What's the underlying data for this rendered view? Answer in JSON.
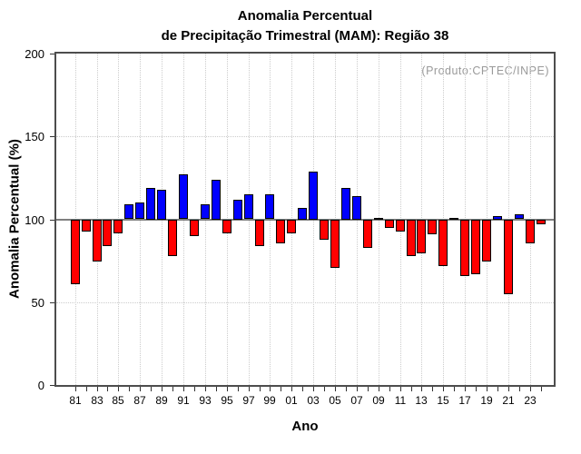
{
  "chart_data": {
    "type": "bar",
    "title": "Anomalia Percentual",
    "subtitle": "de Precipitação Trimestral (MAM): Região 38",
    "annotation": "(Produto:CPTEC/INPE)",
    "xlabel": "Ano",
    "ylabel": "Anomalia Percentual (%)",
    "ylim": [
      0,
      200
    ],
    "yticks": [
      0,
      50,
      100,
      150,
      200
    ],
    "ytick_labels": [
      "0",
      "50",
      "100",
      "150",
      "200"
    ],
    "baseline": 100,
    "grid": "dotted, vertical at labeled years, horizontal at 50 and 150",
    "legend_position": "none",
    "x_tick_labels": [
      "81",
      "83",
      "85",
      "87",
      "89",
      "91",
      "93",
      "95",
      "97",
      "99",
      "01",
      "03",
      "05",
      "07",
      "09",
      "11",
      "13",
      "15",
      "17",
      "19",
      "21",
      "23"
    ],
    "years": [
      1981,
      1982,
      1983,
      1984,
      1985,
      1986,
      1987,
      1988,
      1989,
      1990,
      1991,
      1992,
      1993,
      1994,
      1995,
      1996,
      1997,
      1998,
      1999,
      2000,
      2001,
      2002,
      2003,
      2004,
      2005,
      2006,
      2007,
      2008,
      2009,
      2010,
      2011,
      2012,
      2013,
      2014,
      2015,
      2016,
      2017,
      2018,
      2019,
      2020,
      2021,
      2022,
      2023,
      2024
    ],
    "values": [
      61,
      93,
      75,
      84,
      92,
      109,
      110,
      119,
      118,
      78,
      127,
      90,
      109,
      124,
      92,
      112,
      115,
      84,
      115,
      86,
      92,
      107,
      129,
      88,
      71,
      119,
      114,
      83,
      101,
      95,
      93,
      78,
      80,
      91,
      72,
      101,
      66,
      67,
      75,
      102,
      55,
      103,
      86,
      97
    ],
    "colors": {
      "above_baseline": "#0000ff",
      "below_baseline": "#ff0000",
      "bar_border": "#000000",
      "baseline_line": "#7f7f7f",
      "grid_line": "#cccccc",
      "annotation_text": "#9a9a9a",
      "axis_box": "#4d4d4d"
    }
  }
}
